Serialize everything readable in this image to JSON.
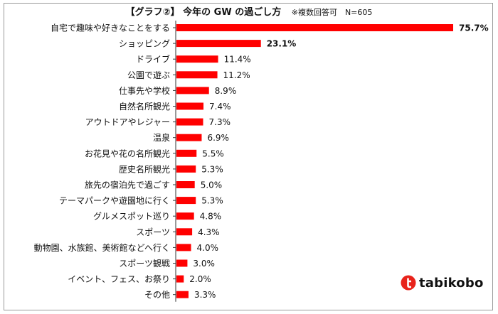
{
  "header": {
    "title": "【グラフ②】 今年の GW の過ごし方",
    "note": "※複数回答可　N=605"
  },
  "brand": {
    "name": "tabikobo",
    "color": "#e8231b"
  },
  "chart_data": {
    "type": "bar",
    "orientation": "horizontal",
    "bar_color": "#ff0000",
    "value_suffix": "%",
    "xlim": [
      0,
      80
    ],
    "grid": false,
    "categories": [
      "自宅で趣味や好きなことをする",
      "ショッピング",
      "ドライブ",
      "公園で遊ぶ",
      "仕事先や学校",
      "自然名所観光",
      "アウトドアやレジャー",
      "温泉",
      "お花見や花の名所観光",
      "歴史名所観光",
      "旅先の宿泊先で過ごす",
      "テーマパークや遊園地に行く",
      "グルメスポット巡り",
      "スポーツ",
      "動物園、水族館、美術館などへ行く",
      "スポーツ観戦",
      "イベント、フェス、お祭り",
      "その他"
    ],
    "values": [
      75.7,
      23.1,
      11.4,
      11.2,
      8.9,
      7.4,
      7.3,
      6.9,
      5.5,
      5.3,
      5.0,
      5.3,
      4.8,
      4.3,
      4.0,
      3.0,
      2.0,
      3.3
    ],
    "labels": [
      "75.7%",
      "23.1%",
      "11.4%",
      "11.2%",
      "8.9%",
      "7.4%",
      "7.3%",
      "6.9%",
      "5.5%",
      "5.3%",
      "5.0%",
      "5.3%",
      "4.8%",
      "4.3%",
      "4.0%",
      "3.0%",
      "2.0%",
      "3.3%"
    ],
    "bold_labels": [
      true,
      true,
      false,
      false,
      false,
      false,
      false,
      false,
      false,
      false,
      false,
      false,
      false,
      false,
      false,
      false,
      false,
      false
    ]
  }
}
